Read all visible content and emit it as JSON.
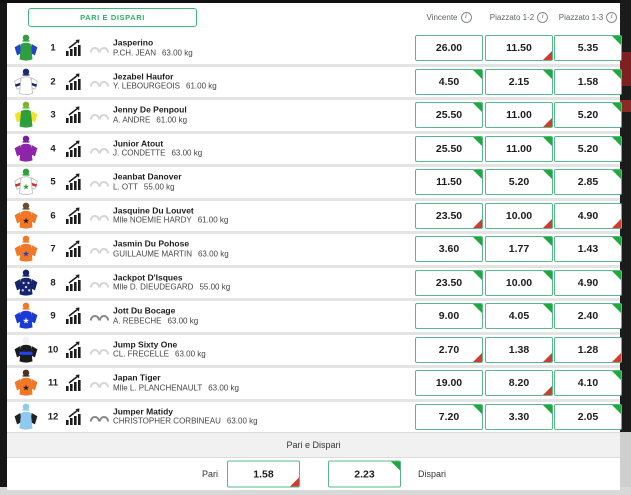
{
  "toolbar": {
    "pari_dispari_button": "PARI E DISPARI"
  },
  "columns": [
    {
      "label": "Vincente"
    },
    {
      "label": "Piazzato 1-2"
    },
    {
      "label": "Piazzato 1-3"
    }
  ],
  "colors": {
    "accent_green": "#3cb878",
    "odds_border_green": "#57b88a",
    "trend_up_green": "#1fa83c",
    "trend_down_red": "#d23b2f"
  },
  "icons": {
    "chart_icon": "form-trend-chart",
    "blinkers_icon": "blinkers",
    "info_icon": "i"
  },
  "rows": [
    {
      "num": "1",
      "name": "Jasperino",
      "jockey": "P.CH. JEAN",
      "weight": "63.00 kg",
      "silk": {
        "cap": "#2e9e3f",
        "body": "#2e9e3f",
        "sleeves": "#2244cc"
      },
      "blinkers_active": false,
      "odds": [
        {
          "value": "26.00",
          "trend": "none"
        },
        {
          "value": "11.50",
          "trend": "down"
        },
        {
          "value": "5.35",
          "trend": "up"
        }
      ]
    },
    {
      "num": "2",
      "name": "Jezabel Haufor",
      "jockey": "Y. LEBOURGEOIS",
      "weight": "61.00 kg",
      "silk": {
        "cap": "#1a2d6b",
        "body": "#ffffff",
        "sleeves": "#ffffff",
        "armband": "#1a2d6b"
      },
      "blinkers_active": false,
      "odds": [
        {
          "value": "4.50",
          "trend": "up"
        },
        {
          "value": "2.15",
          "trend": "up"
        },
        {
          "value": "1.58",
          "trend": "up"
        }
      ]
    },
    {
      "num": "3",
      "name": "Jenny De Penpoul",
      "jockey": "A. ANDRE",
      "weight": "61.00 kg",
      "silk": {
        "cap": "#7ab32e",
        "body": "#2e9e3f",
        "sleeves": "#f2e422"
      },
      "blinkers_active": false,
      "odds": [
        {
          "value": "25.50",
          "trend": "up"
        },
        {
          "value": "11.00",
          "trend": "down"
        },
        {
          "value": "5.20",
          "trend": "up"
        }
      ]
    },
    {
      "num": "4",
      "name": "Junior Atout",
      "jockey": "J. CONDETTE",
      "weight": "63.00 kg",
      "silk": {
        "cap": "#7b1fa2",
        "body": "#8e24aa",
        "sleeves": "#8e24aa"
      },
      "blinkers_active": false,
      "odds": [
        {
          "value": "25.50",
          "trend": "up"
        },
        {
          "value": "11.00",
          "trend": "up"
        },
        {
          "value": "5.20",
          "trend": "up"
        }
      ]
    },
    {
      "num": "5",
      "name": "Jeanbat Danover",
      "jockey": "L. OTT",
      "weight": "55.00 kg",
      "silk": {
        "cap": "#2e9e3f",
        "body": "#ffffff",
        "sleeves": "#ffffff",
        "star": "#2e9e3f",
        "armband": "#d32f2f"
      },
      "blinkers_active": false,
      "odds": [
        {
          "value": "11.50",
          "trend": "up"
        },
        {
          "value": "5.20",
          "trend": "up"
        },
        {
          "value": "2.85",
          "trend": "up"
        }
      ]
    },
    {
      "num": "6",
      "name": "Jasquine Du Louvet",
      "jockey": "Mlle NOEMIE HARDY",
      "weight": "61.00 kg",
      "silk": {
        "cap": "#6d4c2f",
        "body": "#f07826",
        "sleeves": "#f07826",
        "star": "#1b1b1b"
      },
      "blinkers_active": false,
      "odds": [
        {
          "value": "23.50",
          "trend": "down"
        },
        {
          "value": "10.00",
          "trend": "down"
        },
        {
          "value": "4.90",
          "trend": "down"
        }
      ]
    },
    {
      "num": "7",
      "name": "Jasmin Du Pohose",
      "jockey": "GUILLAUME MARTIN",
      "weight": "63.00 kg",
      "silk": {
        "cap": "#f07826",
        "body": "#f07826",
        "sleeves": "#f07826",
        "star": "#1a3bd1"
      },
      "blinkers_active": false,
      "odds": [
        {
          "value": "3.60",
          "trend": "up"
        },
        {
          "value": "1.77",
          "trend": "up"
        },
        {
          "value": "1.43",
          "trend": "up"
        }
      ]
    },
    {
      "num": "8",
      "name": "Jackpot D'Isques",
      "jockey": "Mlle D. DIEUDEGARD",
      "weight": "55.00 kg",
      "silk": {
        "cap": "#16246b",
        "body": "#16246b",
        "sleeves": "#16246b",
        "dots": "#cfd8ff"
      },
      "blinkers_active": false,
      "odds": [
        {
          "value": "23.50",
          "trend": "up"
        },
        {
          "value": "10.00",
          "trend": "up"
        },
        {
          "value": "4.90",
          "trend": "up"
        }
      ]
    },
    {
      "num": "9",
      "name": "Jott Du Bocage",
      "jockey": "A. REBECHE",
      "weight": "63.00 kg",
      "silk": {
        "cap": "#f07826",
        "body": "#1a3bd1",
        "sleeves": "#1a3bd1",
        "star": "#ffffff"
      },
      "blinkers_active": true,
      "odds": [
        {
          "value": "9.00",
          "trend": "up"
        },
        {
          "value": "4.05",
          "trend": "up"
        },
        {
          "value": "2.40",
          "trend": "up"
        }
      ]
    },
    {
      "num": "10",
      "name": "Jump Sixty One",
      "jockey": "CL. FRECELLE",
      "weight": "63.00 kg",
      "silk": {
        "cap": "#f2f2f2",
        "body": "#1b1b1b",
        "sleeves": "#1b1b1b",
        "hoop": "#2244ee"
      },
      "blinkers_active": false,
      "odds": [
        {
          "value": "2.70",
          "trend": "down"
        },
        {
          "value": "1.38",
          "trend": "down"
        },
        {
          "value": "1.28",
          "trend": "down"
        }
      ]
    },
    {
      "num": "11",
      "name": "Japan Tiger",
      "jockey": "Mlle L. PLANCHENAULT",
      "weight": "63.00 kg",
      "silk": {
        "cap": "#4a3322",
        "body": "#f07826",
        "sleeves": "#f07826",
        "star": "#1b1b1b"
      },
      "blinkers_active": false,
      "odds": [
        {
          "value": "19.00",
          "trend": "none"
        },
        {
          "value": "8.20",
          "trend": "down"
        },
        {
          "value": "4.10",
          "trend": "up"
        }
      ]
    },
    {
      "num": "12",
      "name": "Jumper Matidy",
      "jockey": "CHRISTOPHER CORBINEAU",
      "weight": "63.00 kg",
      "silk": {
        "cap": "#8ec9f0",
        "body": "#8ec9f0",
        "sleeves": "#222222"
      },
      "blinkers_active": true,
      "odds": [
        {
          "value": "7.20",
          "trend": "up"
        },
        {
          "value": "3.30",
          "trend": "up"
        },
        {
          "value": "2.05",
          "trend": "up"
        }
      ]
    }
  ],
  "footer": {
    "title": "Pari e Dispari",
    "pari_label": "Pari",
    "dispari_label": "Dispari",
    "pari": {
      "value": "1.58",
      "trend": "down"
    },
    "dispari": {
      "value": "2.23",
      "trend": "up"
    }
  }
}
